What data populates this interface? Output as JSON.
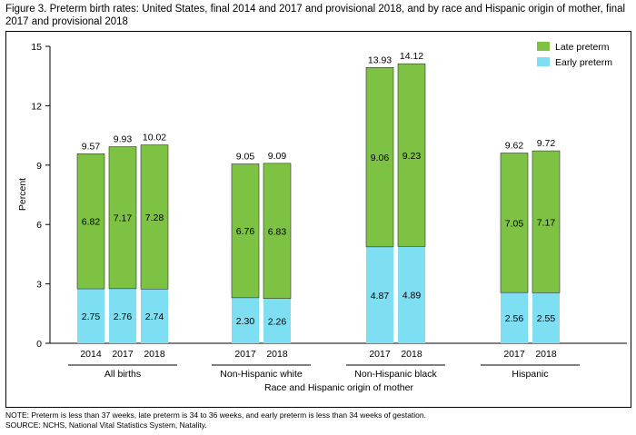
{
  "title": "Figure 3. Preterm birth rates: United States, final 2014 and 2017 and provisional 2018, and by race and Hispanic origin of mother, final 2017 and provisional 2018",
  "footer": {
    "note": "NOTE: Preterm is less than 37 weeks, late preterm is 34 to 36 weeks, and early preterm is less than 34 weeks of gestation.",
    "source": "SOURCE: NCHS, National Vital Statistics System, Natality."
  },
  "colors": {
    "late": "#7dc242",
    "early": "#7fdff2"
  },
  "chart_data": {
    "type": "bar",
    "stacked": true,
    "title": "Preterm birth rates",
    "xlabel": "Race and Hispanic origin of mother",
    "ylabel": "Percent",
    "ylim": [
      0,
      15
    ],
    "yticks": [
      "0",
      "3",
      "6",
      "9",
      "12",
      "15"
    ],
    "legend": [
      "Late preterm",
      "Early preterm"
    ],
    "legend_position": "top-right",
    "groups": [
      {
        "label": "All births",
        "bars": [
          {
            "x": "2014",
            "early": "2.75",
            "late": "6.82",
            "total": "9.57"
          },
          {
            "x": "2017",
            "early": "2.76",
            "late": "7.17",
            "total": "9.93"
          },
          {
            "x": "2018",
            "early": "2.74",
            "late": "7.28",
            "total": "10.02"
          }
        ]
      },
      {
        "label": "Non-Hispanic white",
        "bars": [
          {
            "x": "2017",
            "early": "2.30",
            "late": "6.76",
            "total": "9.05"
          },
          {
            "x": "2018",
            "early": "2.26",
            "late": "6.83",
            "total": "9.09"
          }
        ]
      },
      {
        "label": "Non-Hispanic black",
        "bars": [
          {
            "x": "2017",
            "early": "4.87",
            "late": "9.06",
            "total": "13.93"
          },
          {
            "x": "2018",
            "early": "4.89",
            "late": "9.23",
            "total": "14.12"
          }
        ]
      },
      {
        "label": "Hispanic",
        "bars": [
          {
            "x": "2017",
            "early": "2.56",
            "late": "7.05",
            "total": "9.62"
          },
          {
            "x": "2018",
            "early": "2.55",
            "late": "7.17",
            "total": "9.72"
          }
        ]
      }
    ]
  }
}
